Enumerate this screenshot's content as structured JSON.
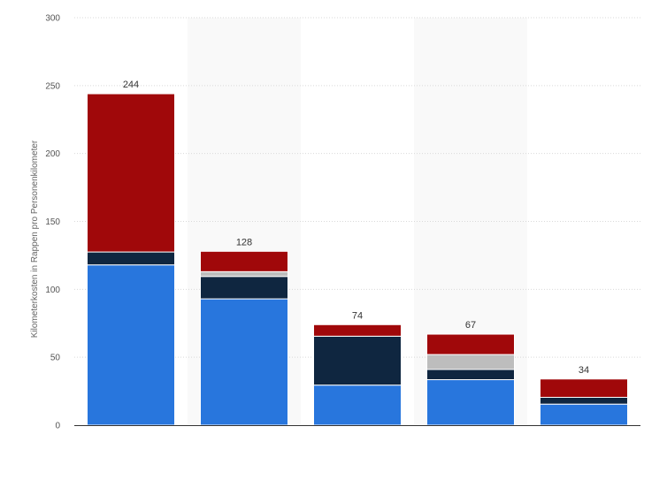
{
  "chart_data": {
    "type": "bar",
    "stacked": true,
    "categories": [
      "",
      "",
      "",
      "",
      ""
    ],
    "series": [
      {
        "color": "#2876dd",
        "values": [
          118,
          93,
          29.5,
          33.5,
          15.5
        ]
      },
      {
        "color": "#0f2640",
        "values": [
          9.5,
          16.5,
          36,
          7.5,
          5
        ]
      },
      {
        "color": "#bdbdbd",
        "values": [
          0,
          3.5,
          0,
          11,
          0
        ]
      },
      {
        "color": "#a0080a",
        "values": [
          116.5,
          15,
          8.5,
          15,
          13.5
        ]
      }
    ],
    "totals": [
      "244",
      "128",
      "74",
      "67",
      "34"
    ],
    "title": "",
    "xlabel": "",
    "ylabel": "Kilometerkosten in Rappen pro Personenkilometer",
    "ylim": [
      0,
      300
    ],
    "yticks": [
      "0",
      "50",
      "100",
      "150",
      "200",
      "250",
      "300"
    ],
    "grid": true,
    "legend": "none"
  }
}
